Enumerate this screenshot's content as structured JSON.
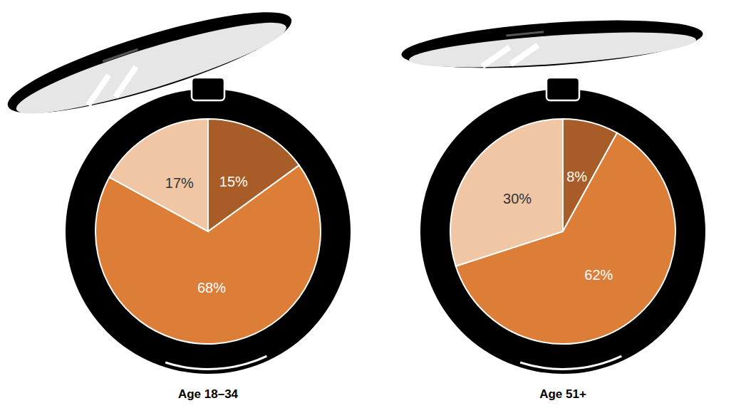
{
  "chart_data": [
    {
      "type": "pie",
      "title": "Age 18–34",
      "values": [
        15,
        68,
        17
      ],
      "value_labels": [
        "15%",
        "68%",
        "17%"
      ],
      "colors": [
        "#a85c28",
        "#dc7d38",
        "#f0c6a4"
      ],
      "data_labels": true
    },
    {
      "type": "pie",
      "title": "Age 51+",
      "values": [
        8,
        62,
        30
      ],
      "value_labels": [
        "8%",
        "62%",
        "30%"
      ],
      "colors": [
        "#a85c28",
        "#dc7d38",
        "#f0c6a4"
      ],
      "data_labels": true
    }
  ]
}
